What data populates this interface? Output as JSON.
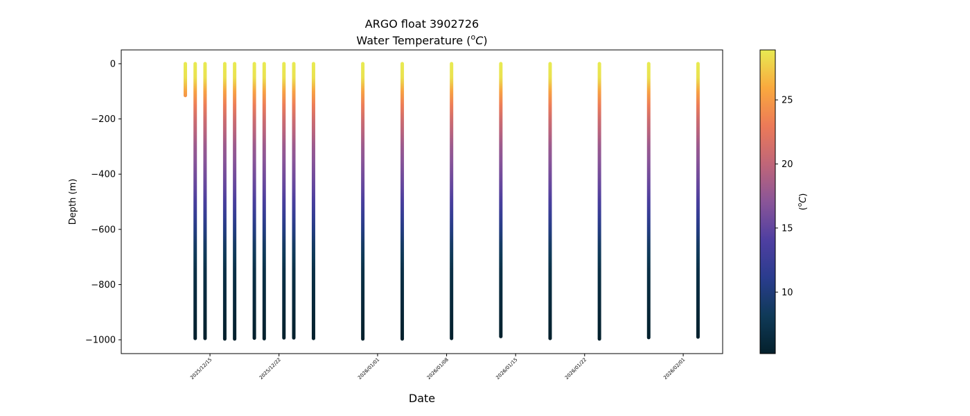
{
  "chart_data": {
    "type": "scatter",
    "title": "ARGO float 3902726",
    "subtitle_prefix": "Water Temperature (",
    "subtitle_unit_sup": "o",
    "subtitle_unit_main": "C",
    "subtitle_suffix": ")",
    "xlabel": "Date",
    "ylabel": "Depth (m)",
    "colorbar_label_sup": "o",
    "colorbar_label_main": "C",
    "colorbar_label_open": "(",
    "colorbar_label_close": ")",
    "colormap": "thermal",
    "colormap_stops": [
      "#04202c",
      "#0f3a58",
      "#2a3c8e",
      "#4f3fa1",
      "#8a5598",
      "#c06678",
      "#ec7a58",
      "#f9a93e",
      "#e8ea52"
    ],
    "clim": [
      5.2,
      28.9
    ],
    "xlim": [
      "2025-12-06",
      "2026-02-05"
    ],
    "ylim": [
      -1050,
      50
    ],
    "x_ticks": [
      "2025/12/15",
      "2025/12/22",
      "2026/01/01",
      "2026/01/08",
      "2026/01/15",
      "2026/01/22",
      "2026/02/01"
    ],
    "y_ticks": [
      0,
      -200,
      -400,
      -600,
      -800,
      -1000
    ],
    "colorbar_ticks": [
      10,
      15,
      20,
      25
    ],
    "profiles": [
      {
        "date": "2025-12-12T12:00",
        "max_depth": -115
      },
      {
        "date": "2025-12-13T12:00",
        "max_depth": -995
      },
      {
        "date": "2025-12-14T12:00",
        "max_depth": -995
      },
      {
        "date": "2025-12-16T12:00",
        "max_depth": -997
      },
      {
        "date": "2025-12-17T12:00",
        "max_depth": -997
      },
      {
        "date": "2025-12-19T12:00",
        "max_depth": -994
      },
      {
        "date": "2025-12-20T12:00",
        "max_depth": -996
      },
      {
        "date": "2025-12-22T12:00",
        "max_depth": -993
      },
      {
        "date": "2025-12-23T12:00",
        "max_depth": -993
      },
      {
        "date": "2025-12-25T12:00",
        "max_depth": -995
      },
      {
        "date": "2025-12-30T12:00",
        "max_depth": -997
      },
      {
        "date": "2026-01-03T12:00",
        "max_depth": -997
      },
      {
        "date": "2026-01-08T12:00",
        "max_depth": -995
      },
      {
        "date": "2026-01-13T12:00",
        "max_depth": -988
      },
      {
        "date": "2026-01-18T12:00",
        "max_depth": -995
      },
      {
        "date": "2026-01-23T12:00",
        "max_depth": -997
      },
      {
        "date": "2026-01-28T12:00",
        "max_depth": -992
      },
      {
        "date": "2026-02-02T12:00",
        "max_depth": -990
      }
    ],
    "temperature_profile": [
      {
        "depth": 0,
        "temp": 28.9
      },
      {
        "depth": -50,
        "temp": 28.5
      },
      {
        "depth": -90,
        "temp": 26.0
      },
      {
        "depth": -130,
        "temp": 24.0
      },
      {
        "depth": -200,
        "temp": 21.0
      },
      {
        "depth": -300,
        "temp": 18.0
      },
      {
        "depth": -450,
        "temp": 15.0
      },
      {
        "depth": -550,
        "temp": 12.0
      },
      {
        "depth": -650,
        "temp": 9.0
      },
      {
        "depth": -750,
        "temp": 7.0
      },
      {
        "depth": -1000,
        "temp": 5.2
      }
    ],
    "grid": false,
    "legend": "none"
  }
}
